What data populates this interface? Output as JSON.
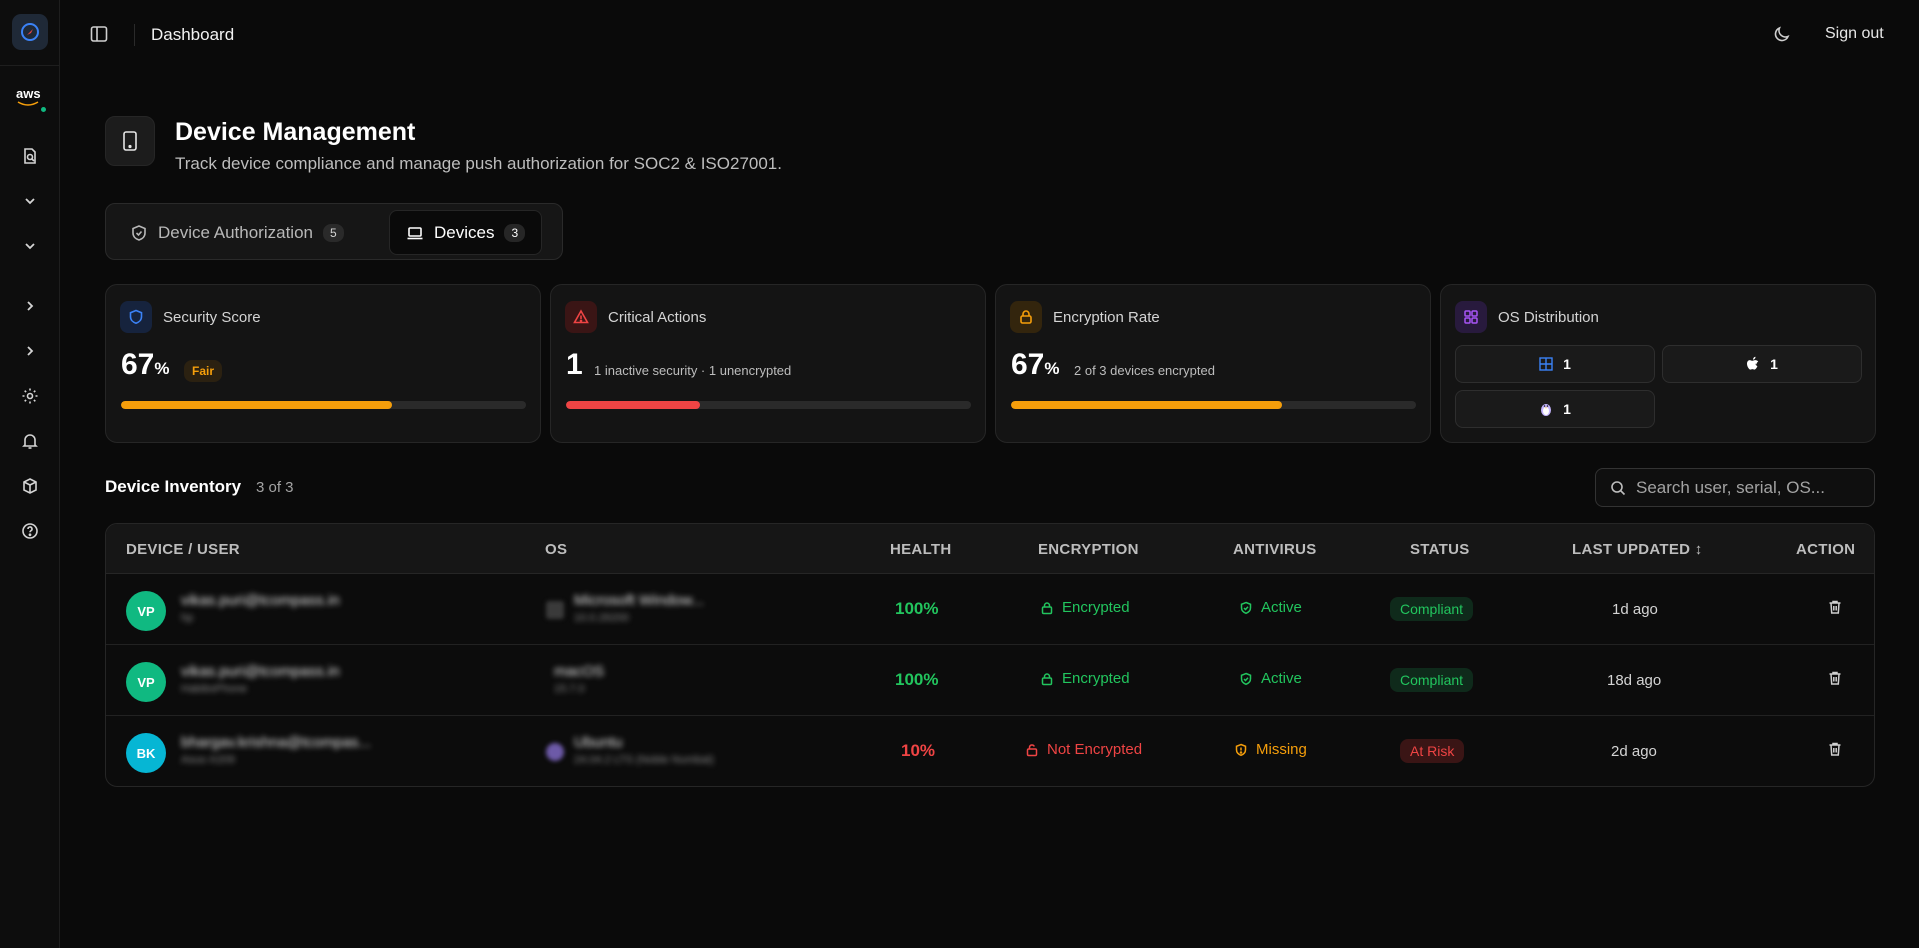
{
  "topbar": {
    "title": "Dashboard",
    "signout": "Sign out"
  },
  "sidebar": {
    "aws_label": "aws"
  },
  "header": {
    "title": "Device Management",
    "subtitle": "Track device compliance and manage push authorization for SOC2 & ISO27001."
  },
  "tabs": [
    {
      "label": "Device Authorization",
      "count": "5"
    },
    {
      "label": "Devices",
      "count": "3"
    }
  ],
  "cards": {
    "security": {
      "label": "Security Score",
      "value": "67",
      "unit": "%",
      "badge": "Fair",
      "progress": 67
    },
    "critical": {
      "label": "Critical Actions",
      "value": "1",
      "note": "1 inactive security · 1 unencrypted",
      "progress": 33
    },
    "encryption": {
      "label": "Encryption Rate",
      "value": "67",
      "unit": "%",
      "note": "2 of 3 devices encrypted",
      "progress": 67
    },
    "os": {
      "label": "OS Distribution",
      "windows": "1",
      "macos": "1",
      "linux": "1"
    }
  },
  "inventory": {
    "title": "Device Inventory",
    "count": "3 of 3",
    "search_placeholder": "Search user, serial, OS..."
  },
  "table": {
    "headers": {
      "device": "DEVICE / USER",
      "os": "OS",
      "health": "HEALTH",
      "encryption": "ENCRYPTION",
      "antivirus": "ANTIVIRUS",
      "status": "STATUS",
      "updated": "LAST UPDATED ↕",
      "action": "ACTION"
    },
    "rows": [
      {
        "initials": "VP",
        "email": "vikas.puri@tcompass.in",
        "device": "hp",
        "os": "Microsoft Window...",
        "os_version": "10.0.26200",
        "health": "100%",
        "encryption": "Encrypted",
        "antivirus": "Active",
        "status": "Compliant",
        "updated": "1d ago"
      },
      {
        "initials": "VP",
        "email": "vikas.puri@tcompass.in",
        "device": "HabibsPhone",
        "os": "macOS",
        "os_version": "15.7.0",
        "health": "100%",
        "encryption": "Encrypted",
        "antivirus": "Active",
        "status": "Compliant",
        "updated": "18d ago"
      },
      {
        "initials": "BK",
        "email": "bhargav.krishna@tcompas...",
        "device": "Asus-X209",
        "os": "Ubuntu",
        "os_version": "24.04.2 LTS (Noble Numbat)",
        "health": "10%",
        "encryption": "Not Encrypted",
        "antivirus": "Missing",
        "status": "At Risk",
        "updated": "2d ago"
      }
    ]
  },
  "colors": {
    "green": "#22c55e",
    "red": "#ef4444",
    "amber": "#f59e0b",
    "avatar_green": "#10b981",
    "avatar_cyan": "#06b6d4"
  }
}
